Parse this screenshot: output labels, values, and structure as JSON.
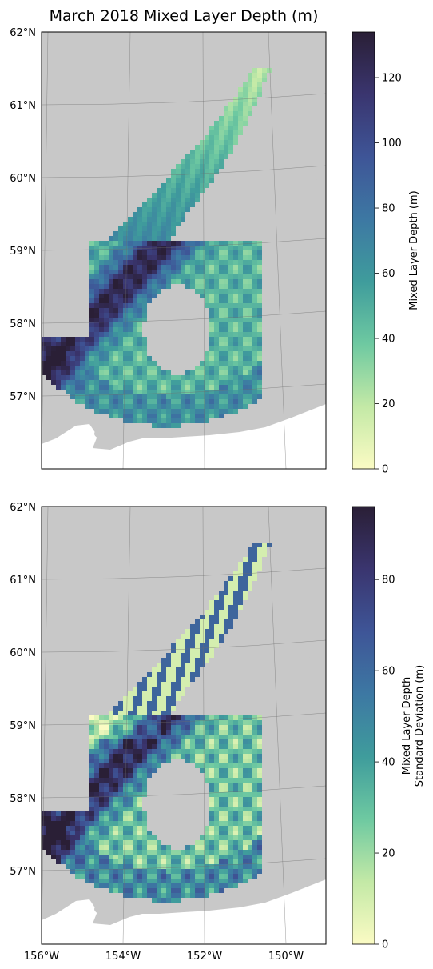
{
  "chart_data": [
    {
      "type": "heatmap",
      "title": "March 2018 Mixed Layer Depth (m)",
      "xlabel": "",
      "ylabel": "",
      "lat_ticks": [
        "62°N",
        "61°N",
        "60°N",
        "59°N",
        "58°N",
        "57°N"
      ],
      "lon_ticks": [],
      "colorbar": {
        "label": "Mixed Layer Depth (m)",
        "range": [
          0,
          134
        ],
        "ticks": [
          "0",
          "20",
          "40",
          "60",
          "80",
          "100",
          "120"
        ],
        "tick_values": [
          0,
          20,
          40,
          60,
          80,
          100,
          120
        ],
        "colormap": [
          "#fbfbc4",
          "#c3e9a6",
          "#6ec9a1",
          "#3f9c9c",
          "#3d78a3",
          "#3e5597",
          "#3a356f",
          "#2a1f36"
        ]
      }
    },
    {
      "type": "heatmap",
      "title": "",
      "xlabel": "",
      "ylabel": "",
      "lat_ticks": [
        "62°N",
        "61°N",
        "60°N",
        "59°N",
        "58°N",
        "57°N"
      ],
      "lon_ticks": [
        "156°W",
        "154°W",
        "152°W",
        "150°W"
      ],
      "colorbar": {
        "label": [
          "Mixed Layer Depth",
          "Standard Deviation (m)"
        ],
        "range": [
          0,
          96
        ],
        "ticks": [
          "0",
          "20",
          "40",
          "60",
          "80"
        ],
        "tick_values": [
          0,
          20,
          40,
          60,
          80
        ],
        "colormap": [
          "#fbfbc4",
          "#c3e9a6",
          "#6ec9a1",
          "#3f9c9c",
          "#3d78a3",
          "#3e5597",
          "#3a356f",
          "#2a1f36"
        ]
      }
    }
  ],
  "colors": {
    "land": "#c8c8c8",
    "frame": "#000000",
    "grid": "#6e6e6e"
  }
}
